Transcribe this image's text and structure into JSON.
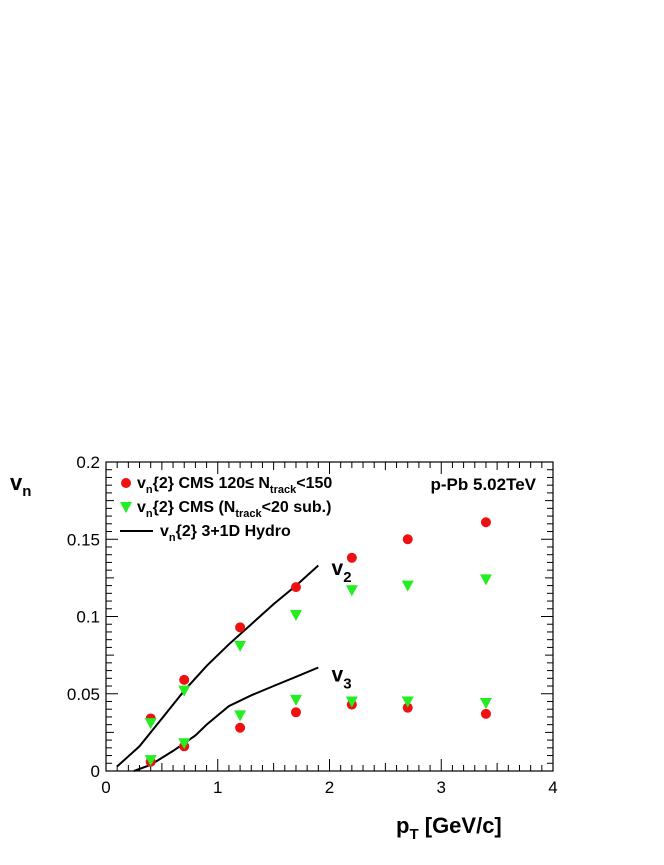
{
  "chart_data": {
    "type": "scatter",
    "title": "",
    "collision_label": "p-Pb 5.02TeV",
    "xlabel": {
      "main": "p",
      "sub": "T",
      "rest": " [GeV/c]"
    },
    "ylabel": {
      "main": "v",
      "sub": "n"
    },
    "xlim": [
      0,
      4
    ],
    "ylim": [
      0,
      0.2
    ],
    "x_ticks": [
      {
        "value": 0,
        "label": "0"
      },
      {
        "value": 1,
        "label": "1"
      },
      {
        "value": 2,
        "label": "2"
      },
      {
        "value": 3,
        "label": "3"
      },
      {
        "value": 4,
        "label": "4"
      }
    ],
    "y_ticks": [
      {
        "value": 0,
        "label": "0"
      },
      {
        "value": 0.05,
        "label": "0.05"
      },
      {
        "value": 0.1,
        "label": "0.1"
      },
      {
        "value": 0.15,
        "label": "0.15"
      },
      {
        "value": 0.2,
        "label": "0.2"
      }
    ],
    "legend_placement": "top-left",
    "legend": [
      {
        "marker": "circle",
        "color": "#ee1111",
        "parts": [
          {
            "t": "v",
            "s": "normal"
          },
          {
            "t": "n",
            "s": "sub"
          },
          {
            "t": "{2} CMS  120≤ N",
            "s": "normal"
          },
          {
            "t": "track",
            "s": "sub"
          },
          {
            "t": "<150",
            "s": "normal"
          }
        ]
      },
      {
        "marker": "triangle-down",
        "color": "#22ee22",
        "parts": [
          {
            "t": "v",
            "s": "normal"
          },
          {
            "t": "n",
            "s": "sub"
          },
          {
            "t": "{2} CMS  (N",
            "s": "normal"
          },
          {
            "t": "track",
            "s": "sub"
          },
          {
            "t": "<20 sub.)",
            "s": "normal"
          }
        ]
      },
      {
        "marker": "line",
        "color": "#000000",
        "parts": [
          {
            "t": "v",
            "s": "normal"
          },
          {
            "t": "n",
            "s": "sub"
          },
          {
            "t": "{2}  3+1D Hydro",
            "s": "normal"
          }
        ]
      }
    ],
    "annotations": [
      {
        "main": "v",
        "sub": "2",
        "x": 2.0,
        "y": 0.127
      },
      {
        "main": "v",
        "sub": "3",
        "x": 2.0,
        "y": 0.058
      }
    ],
    "series": [
      {
        "marker": "circle",
        "color": "#ee1111",
        "harmonic": "v2",
        "x": [
          0.4,
          0.7,
          1.2,
          1.7,
          2.2,
          2.7,
          3.4
        ],
        "y": [
          0.034,
          0.059,
          0.093,
          0.119,
          0.138,
          0.15,
          0.161
        ]
      },
      {
        "marker": "circle",
        "color": "#ee1111",
        "harmonic": "v3",
        "x": [
          0.4,
          0.7,
          1.2,
          1.7,
          2.2,
          2.7,
          3.4
        ],
        "y": [
          0.006,
          0.016,
          0.028,
          0.038,
          0.043,
          0.041,
          0.037
        ]
      },
      {
        "marker": "triangle-down",
        "color": "#22ee22",
        "harmonic": "v2",
        "x": [
          0.4,
          0.7,
          1.2,
          1.7,
          2.2,
          2.7,
          3.4
        ],
        "y": [
          0.031,
          0.052,
          0.081,
          0.101,
          0.117,
          0.12,
          0.124
        ]
      },
      {
        "marker": "triangle-down",
        "color": "#22ee22",
        "harmonic": "v3",
        "x": [
          0.4,
          0.7,
          1.2,
          1.7,
          2.2,
          2.7,
          3.4
        ],
        "y": [
          0.007,
          0.018,
          0.036,
          0.046,
          0.045,
          0.045,
          0.044
        ]
      },
      {
        "marker": "line",
        "color": "#000000",
        "harmonic": "v2",
        "x": [
          0.1,
          0.3,
          0.5,
          0.7,
          0.9,
          1.1,
          1.3,
          1.5,
          1.7,
          1.9
        ],
        "y": [
          0.003,
          0.016,
          0.034,
          0.052,
          0.068,
          0.082,
          0.095,
          0.108,
          0.12,
          0.133
        ]
      },
      {
        "marker": "line",
        "color": "#000000",
        "harmonic": "v3",
        "x": [
          0.25,
          0.4,
          0.6,
          0.8,
          0.9,
          1.1,
          1.3,
          1.5,
          1.7,
          1.9
        ],
        "y": [
          0.0,
          0.004,
          0.013,
          0.023,
          0.03,
          0.042,
          0.049,
          0.055,
          0.061,
          0.067
        ]
      }
    ]
  }
}
